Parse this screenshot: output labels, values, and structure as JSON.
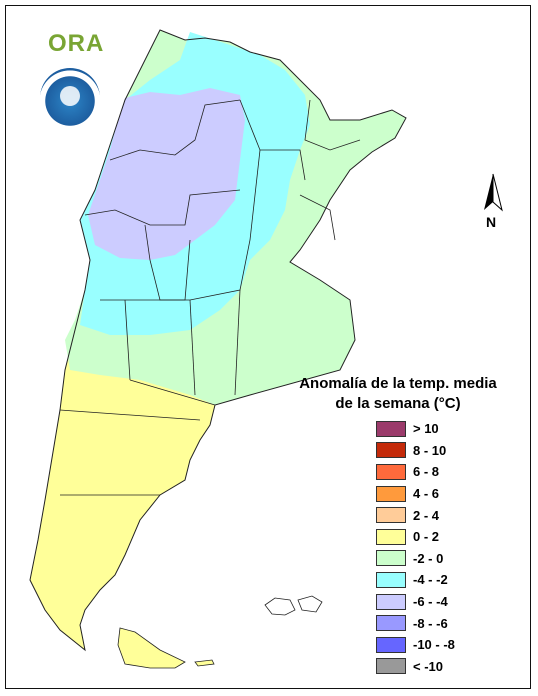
{
  "logo": {
    "text": "ORA",
    "seal_icon": "smn-seal-icon"
  },
  "north_arrow": {
    "label": "N"
  },
  "legend": {
    "title_line1": "Anomalía de la temp. media",
    "title_line2": "de la semana (°C)",
    "items": [
      {
        "label": "> 10",
        "color": "#9b3b6b"
      },
      {
        "label": "8 - 10",
        "color": "#c42a0a"
      },
      {
        "label": "6 - 8",
        "color": "#ff6a3c"
      },
      {
        "label": "4 - 6",
        "color": "#ff9a3c"
      },
      {
        "label": "2 - 4",
        "color": "#ffcc99"
      },
      {
        "label": "0 - 2",
        "color": "#ffff99"
      },
      {
        "label": "-2 - 0",
        "color": "#ccffcc"
      },
      {
        "label": "-4 - -2",
        "color": "#99ffff"
      },
      {
        "label": "-6 - -4",
        "color": "#ccccff"
      },
      {
        "label": "-8 - -6",
        "color": "#9999ff"
      },
      {
        "label": "-10 - -8",
        "color": "#6666ff"
      },
      {
        "label": "< -10",
        "color": "#999999"
      }
    ]
  },
  "map_colors": {
    "yellow": "#ffff99",
    "green": "#ccffcc",
    "cyan": "#99ffff",
    "lavender": "#ccccff"
  }
}
